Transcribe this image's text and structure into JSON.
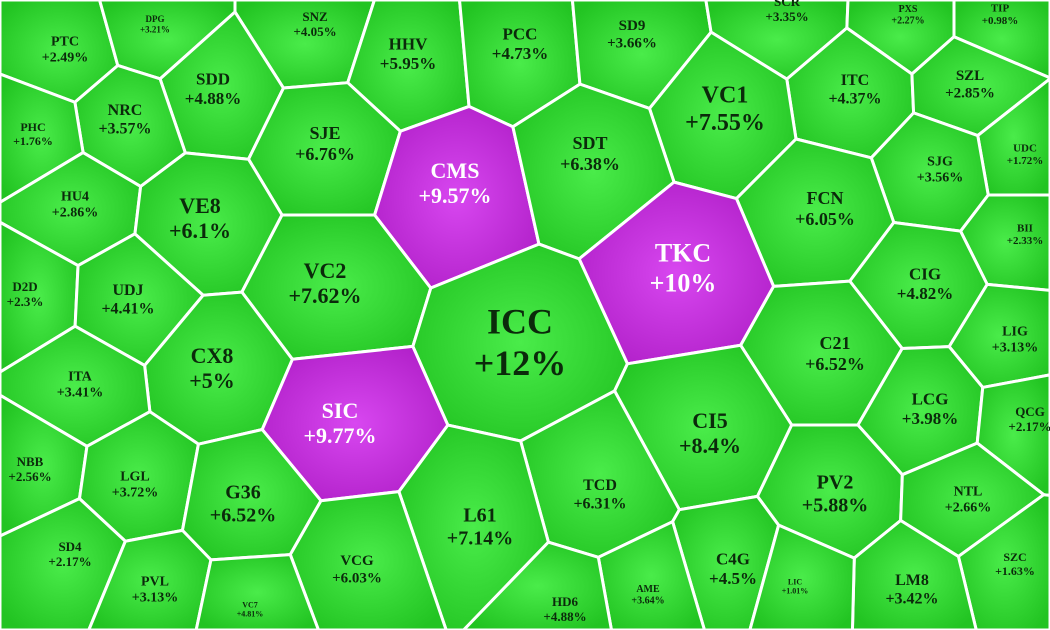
{
  "chart_data": {
    "type": "voronoi-treemap",
    "categories": [
      "PTC",
      "DPG",
      "SNZ",
      "HHV",
      "PCC",
      "SD9",
      "SCR",
      "PXS",
      "TIP",
      "SDD",
      "ITC",
      "SZL",
      "NRC",
      "VC1",
      "PHC",
      "SJE",
      "CMS",
      "SDT",
      "UDC",
      "SJG",
      "HU4",
      "VE8",
      "FCN",
      "BII",
      "TKC",
      "VC2",
      "CIG",
      "D2D",
      "UDJ",
      "ICC",
      "LIG",
      "C21",
      "CX8",
      "ITA",
      "LCG",
      "SIC",
      "CI5",
      "QCG",
      "NBB",
      "LGL",
      "TCD",
      "PV2",
      "G36",
      "NTL",
      "L61",
      "SD4",
      "VCG",
      "SZC",
      "C4G",
      "AME",
      "PVL",
      "LM8",
      "HD6",
      "VC7",
      "LIC"
    ],
    "values": [
      2.49,
      3.21,
      4.05,
      5.95,
      4.73,
      3.66,
      3.35,
      2.27,
      0.98,
      4.88,
      4.37,
      2.85,
      3.57,
      7.55,
      1.76,
      6.76,
      9.57,
      6.38,
      1.72,
      3.56,
      2.86,
      6.1,
      6.05,
      2.33,
      10,
      7.62,
      4.82,
      2.3,
      4.41,
      12,
      3.13,
      6.52,
      5,
      3.41,
      3.98,
      9.77,
      8.4,
      2.17,
      2.56,
      3.72,
      6.31,
      5.88,
      6.52,
      2.66,
      7.14,
      2.17,
      6.03,
      1.63,
      4.5,
      3.64,
      3.13,
      3.42,
      4.88,
      4.81,
      1.01
    ],
    "value_labels": [
      "+2.49%",
      "+3.21%",
      "+4.05%",
      "+5.95%",
      "+4.73%",
      "+3.66%",
      "+3.35%",
      "+2.27%",
      "+0.98%",
      "+4.88%",
      "+4.37%",
      "+2.85%",
      "+3.57%",
      "+7.55%",
      "+1.76%",
      "+6.76%",
      "+9.57%",
      "+6.38%",
      "+1.72%",
      "+3.56%",
      "+2.86%",
      "+6.1%",
      "+6.05%",
      "+2.33%",
      "+10%",
      "+7.62%",
      "+4.82%",
      "+2.3%",
      "+4.41%",
      "+12%",
      "+3.13%",
      "+6.52%",
      "+5%",
      "+3.41%",
      "+3.98%",
      "+9.77%",
      "+8.4%",
      "+2.17%",
      "+2.56%",
      "+3.72%",
      "+6.31%",
      "+5.88%",
      "+6.52%",
      "+2.66%",
      "+7.14%",
      "+2.17%",
      "+6.03%",
      "+1.63%",
      "+4.5%",
      "+3.64%",
      "+3.13%",
      "+3.42%",
      "+4.88%",
      "+4.81%",
      "+1.01%"
    ],
    "colors": [
      "#22c422",
      "#22c422",
      "#22c422",
      "#22c422",
      "#22c422",
      "#22c422",
      "#22c422",
      "#22c422",
      "#22c422",
      "#22c422",
      "#22c422",
      "#22c422",
      "#22c422",
      "#22c422",
      "#22c422",
      "#22c422",
      "#b01fc8",
      "#22c422",
      "#22c422",
      "#22c422",
      "#22c422",
      "#22c422",
      "#22c422",
      "#22c422",
      "#b01fc8",
      "#22c422",
      "#22c422",
      "#22c422",
      "#22c422",
      "#22c422",
      "#22c422",
      "#22c422",
      "#22c422",
      "#22c422",
      "#22c422",
      "#b01fc8",
      "#22c422",
      "#22c422",
      "#22c422",
      "#22c422",
      "#22c422",
      "#22c422",
      "#22c422",
      "#22c422",
      "#22c422",
      "#22c422",
      "#22c422",
      "#22c422",
      "#22c422",
      "#22c422",
      "#22c422",
      "#22c422",
      "#22c422",
      "#22c422",
      "#22c422"
    ]
  }
}
